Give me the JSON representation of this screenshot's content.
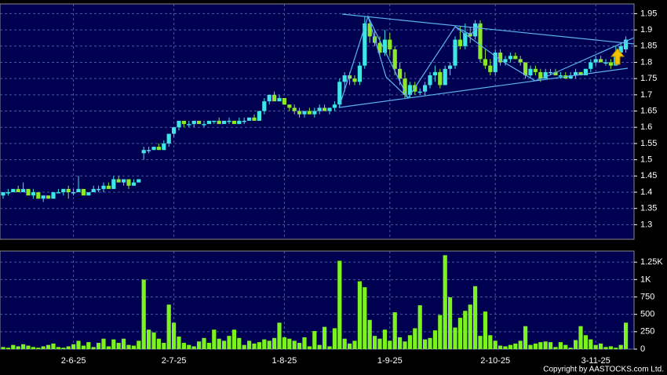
{
  "chart_data": {
    "type": "candlestick",
    "up_color": "#3ee6e6",
    "down_color": "#8ee82a",
    "volume_color": "#7cf21e",
    "grid": true,
    "copyright": "Copyright by AASTOCKS.com Ltd.",
    "categories": [
      null,
      null,
      null,
      null,
      null,
      null,
      null,
      null,
      null,
      null,
      null,
      null,
      null,
      null,
      "2-6-25",
      null,
      null,
      null,
      null,
      null,
      null,
      null,
      null,
      null,
      null,
      null,
      null,
      null,
      null,
      null,
      null,
      null,
      null,
      null,
      "2-7-25",
      null,
      null,
      null,
      null,
      null,
      null,
      null,
      null,
      null,
      null,
      null,
      null,
      null,
      null,
      null,
      null,
      null,
      null,
      null,
      null,
      null,
      "1-8-25",
      null,
      null,
      null,
      null,
      null,
      null,
      null,
      null,
      null,
      null,
      null,
      null,
      null,
      null,
      null,
      null,
      null,
      null,
      null,
      null,
      "1-9-25",
      null,
      null,
      null,
      null,
      null,
      null,
      null,
      null,
      null,
      null,
      null,
      null,
      null,
      null,
      null,
      null,
      null,
      null,
      null,
      null,
      "2-10-25",
      null,
      null,
      null,
      null,
      null,
      null,
      null,
      null,
      null,
      null,
      null,
      null,
      null,
      null,
      null,
      null,
      null,
      null,
      null,
      "3-11-25",
      null,
      null,
      null,
      null,
      null,
      null
    ],
    "ohlc": [
      [
        1.39,
        1.4,
        1.38,
        1.4
      ],
      [
        1.4,
        1.41,
        1.39,
        1.4
      ],
      [
        1.4,
        1.41,
        1.4,
        1.41
      ],
      [
        1.41,
        1.42,
        1.4,
        1.4
      ],
      [
        1.4,
        1.43,
        1.4,
        1.41
      ],
      [
        1.41,
        1.41,
        1.39,
        1.39
      ],
      [
        1.39,
        1.41,
        1.38,
        1.4
      ],
      [
        1.4,
        1.4,
        1.38,
        1.38
      ],
      [
        1.38,
        1.39,
        1.37,
        1.39
      ],
      [
        1.39,
        1.39,
        1.38,
        1.38
      ],
      [
        1.38,
        1.4,
        1.38,
        1.4
      ],
      [
        1.4,
        1.41,
        1.4,
        1.4
      ],
      [
        1.4,
        1.41,
        1.39,
        1.41
      ],
      [
        1.41,
        1.42,
        1.38,
        1.4
      ],
      [
        1.4,
        1.41,
        1.39,
        1.4
      ],
      [
        1.4,
        1.45,
        1.4,
        1.41
      ],
      [
        1.41,
        1.41,
        1.39,
        1.39
      ],
      [
        1.39,
        1.4,
        1.39,
        1.4
      ],
      [
        1.4,
        1.42,
        1.4,
        1.41
      ],
      [
        1.41,
        1.42,
        1.4,
        1.41
      ],
      [
        1.41,
        1.43,
        1.4,
        1.42
      ],
      [
        1.42,
        1.43,
        1.41,
        1.41
      ],
      [
        1.41,
        1.45,
        1.41,
        1.44
      ],
      [
        1.44,
        1.45,
        1.43,
        1.43
      ],
      [
        1.43,
        1.44,
        1.42,
        1.44
      ],
      [
        1.44,
        1.44,
        1.41,
        1.42
      ],
      [
        1.42,
        1.44,
        1.42,
        1.43
      ],
      [
        1.43,
        1.44,
        1.43,
        1.44
      ],
      [
        1.52,
        1.54,
        1.5,
        1.53
      ],
      [
        1.53,
        1.54,
        1.52,
        1.53
      ],
      [
        1.53,
        1.54,
        1.53,
        1.54
      ],
      [
        1.54,
        1.55,
        1.53,
        1.53
      ],
      [
        1.53,
        1.56,
        1.53,
        1.55
      ],
      [
        1.55,
        1.58,
        1.54,
        1.58
      ],
      [
        1.58,
        1.6,
        1.57,
        1.6
      ],
      [
        1.6,
        1.62,
        1.59,
        1.62
      ],
      [
        1.62,
        1.62,
        1.6,
        1.61
      ],
      [
        1.61,
        1.62,
        1.6,
        1.61
      ],
      [
        1.61,
        1.62,
        1.6,
        1.62
      ],
      [
        1.62,
        1.62,
        1.61,
        1.61
      ],
      [
        1.61,
        1.62,
        1.6,
        1.61
      ],
      [
        1.61,
        1.62,
        1.61,
        1.62
      ],
      [
        1.62,
        1.62,
        1.61,
        1.62
      ],
      [
        1.62,
        1.63,
        1.61,
        1.61
      ],
      [
        1.61,
        1.62,
        1.61,
        1.62
      ],
      [
        1.62,
        1.63,
        1.61,
        1.62
      ],
      [
        1.62,
        1.62,
        1.61,
        1.61
      ],
      [
        1.61,
        1.63,
        1.61,
        1.62
      ],
      [
        1.62,
        1.63,
        1.61,
        1.62
      ],
      [
        1.62,
        1.63,
        1.62,
        1.63
      ],
      [
        1.63,
        1.64,
        1.62,
        1.62
      ],
      [
        1.62,
        1.65,
        1.62,
        1.65
      ],
      [
        1.65,
        1.69,
        1.64,
        1.68
      ],
      [
        1.68,
        1.7,
        1.67,
        1.7
      ],
      [
        1.7,
        1.71,
        1.68,
        1.68
      ],
      [
        1.68,
        1.7,
        1.68,
        1.69
      ],
      [
        1.69,
        1.69,
        1.67,
        1.67
      ],
      [
        1.67,
        1.67,
        1.65,
        1.66
      ],
      [
        1.66,
        1.67,
        1.64,
        1.65
      ],
      [
        1.65,
        1.66,
        1.63,
        1.64
      ],
      [
        1.64,
        1.65,
        1.63,
        1.65
      ],
      [
        1.65,
        1.66,
        1.64,
        1.64
      ],
      [
        1.64,
        1.66,
        1.63,
        1.65
      ],
      [
        1.65,
        1.67,
        1.64,
        1.66
      ],
      [
        1.66,
        1.67,
        1.65,
        1.65
      ],
      [
        1.65,
        1.66,
        1.64,
        1.66
      ],
      [
        1.66,
        1.68,
        1.65,
        1.67
      ],
      [
        1.67,
        1.75,
        1.66,
        1.74
      ],
      [
        1.74,
        1.77,
        1.71,
        1.76
      ],
      [
        1.76,
        1.77,
        1.73,
        1.75
      ],
      [
        1.75,
        1.76,
        1.73,
        1.74
      ],
      [
        1.74,
        1.8,
        1.73,
        1.79
      ],
      [
        1.79,
        1.94,
        1.78,
        1.92
      ],
      [
        1.92,
        1.93,
        1.86,
        1.88
      ],
      [
        1.88,
        1.9,
        1.85,
        1.86
      ],
      [
        1.86,
        1.88,
        1.82,
        1.83
      ],
      [
        1.83,
        1.9,
        1.82,
        1.87
      ],
      [
        1.87,
        1.89,
        1.82,
        1.84
      ],
      [
        1.84,
        1.85,
        1.76,
        1.78
      ],
      [
        1.78,
        1.8,
        1.73,
        1.75
      ],
      [
        1.75,
        1.77,
        1.69,
        1.7
      ],
      [
        1.7,
        1.74,
        1.69,
        1.73
      ],
      [
        1.73,
        1.74,
        1.7,
        1.71
      ],
      [
        1.71,
        1.72,
        1.7,
        1.71
      ],
      [
        1.71,
        1.74,
        1.7,
        1.73
      ],
      [
        1.73,
        1.77,
        1.72,
        1.76
      ],
      [
        1.76,
        1.79,
        1.74,
        1.77
      ],
      [
        1.77,
        1.78,
        1.72,
        1.73
      ],
      [
        1.73,
        1.79,
        1.73,
        1.78
      ],
      [
        1.78,
        1.8,
        1.76,
        1.79
      ],
      [
        1.79,
        1.88,
        1.78,
        1.87
      ],
      [
        1.87,
        1.91,
        1.84,
        1.85
      ],
      [
        1.85,
        1.92,
        1.84,
        1.89
      ],
      [
        1.89,
        1.91,
        1.86,
        1.88
      ],
      [
        1.88,
        1.93,
        1.87,
        1.92
      ],
      [
        1.92,
        1.93,
        1.8,
        1.81
      ],
      [
        1.81,
        1.84,
        1.78,
        1.79
      ],
      [
        1.79,
        1.81,
        1.76,
        1.77
      ],
      [
        1.77,
        1.84,
        1.76,
        1.83
      ],
      [
        1.83,
        1.84,
        1.79,
        1.8
      ],
      [
        1.8,
        1.82,
        1.79,
        1.81
      ],
      [
        1.81,
        1.83,
        1.8,
        1.82
      ],
      [
        1.82,
        1.83,
        1.81,
        1.81
      ],
      [
        1.81,
        1.82,
        1.79,
        1.8
      ],
      [
        1.8,
        1.8,
        1.75,
        1.76
      ],
      [
        1.76,
        1.79,
        1.75,
        1.78
      ],
      [
        1.78,
        1.79,
        1.76,
        1.77
      ],
      [
        1.77,
        1.78,
        1.74,
        1.75
      ],
      [
        1.75,
        1.78,
        1.75,
        1.77
      ],
      [
        1.77,
        1.78,
        1.76,
        1.77
      ],
      [
        1.77,
        1.78,
        1.76,
        1.76
      ],
      [
        1.76,
        1.77,
        1.75,
        1.76
      ],
      [
        1.76,
        1.77,
        1.75,
        1.75
      ],
      [
        1.75,
        1.77,
        1.75,
        1.76
      ],
      [
        1.76,
        1.78,
        1.75,
        1.77
      ],
      [
        1.77,
        1.77,
        1.76,
        1.76
      ],
      [
        1.76,
        1.78,
        1.76,
        1.78
      ],
      [
        1.78,
        1.81,
        1.77,
        1.8
      ],
      [
        1.8,
        1.82,
        1.79,
        1.81
      ],
      [
        1.81,
        1.82,
        1.8,
        1.8
      ],
      [
        1.8,
        1.81,
        1.79,
        1.8
      ],
      [
        1.8,
        1.81,
        1.78,
        1.79
      ],
      [
        1.79,
        1.85,
        1.79,
        1.83
      ],
      [
        1.83,
        1.86,
        1.82,
        1.85
      ],
      [
        1.84,
        1.88,
        1.83,
        1.87
      ]
    ],
    "volume": [
      30,
      20,
      60,
      40,
      70,
      50,
      30,
      20,
      40,
      60,
      80,
      30,
      20,
      40,
      70,
      120,
      50,
      100,
      30,
      90,
      150,
      40,
      140,
      90,
      150,
      60,
      50,
      120,
      1000,
      280,
      240,
      150,
      90,
      640,
      380,
      180,
      90,
      60,
      40,
      110,
      160,
      90,
      280,
      150,
      120,
      190,
      280,
      160,
      60,
      120,
      80,
      100,
      140,
      120,
      160,
      380,
      170,
      150,
      120,
      90,
      170,
      40,
      260,
      60,
      320,
      40,
      300,
      1270,
      150,
      80,
      120,
      975,
      890,
      420,
      190,
      150,
      280,
      120,
      530,
      170,
      110,
      200,
      300,
      630,
      140,
      160,
      270,
      490,
      1350,
      745,
      310,
      450,
      550,
      640,
      905,
      190,
      540,
      200,
      120,
      50,
      40,
      60,
      80,
      120,
      330,
      60,
      80,
      100,
      110,
      100,
      30,
      100,
      60,
      20,
      130,
      330,
      200,
      140,
      60,
      80,
      30,
      40,
      20,
      60,
      380
    ],
    "ylim": [
      1.255,
      1.98
    ],
    "yticks": [
      1.3,
      1.35,
      1.4,
      1.45,
      1.5,
      1.55,
      1.6,
      1.65,
      1.7,
      1.75,
      1.8,
      1.85,
      1.9,
      1.95
    ],
    "vlim": [
      0,
      1410
    ],
    "vticks": [
      0,
      250,
      500,
      750,
      {
        "value": 1000,
        "label": "1K"
      },
      {
        "value": 1250,
        "label": "1.25K"
      }
    ]
  }
}
